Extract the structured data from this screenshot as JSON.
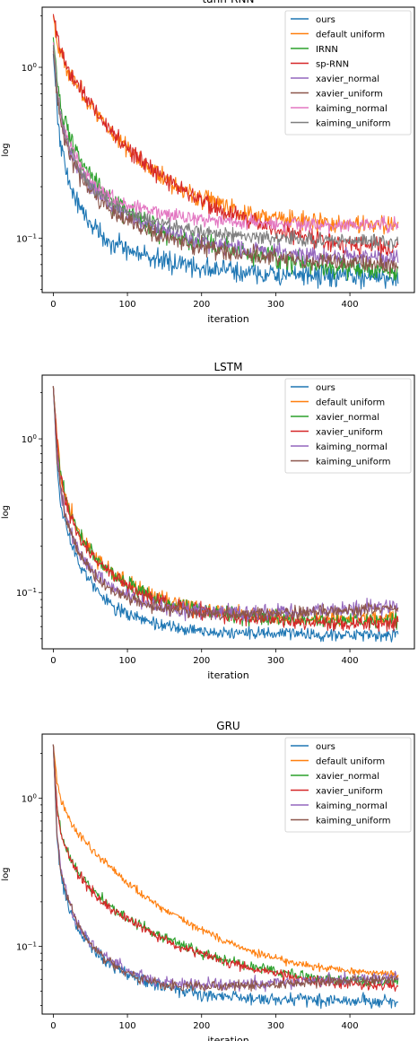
{
  "chart_data": [
    {
      "type": "line",
      "title": "tanh-RNN",
      "xlabel": "iteration",
      "ylabel": "log",
      "xlim": [
        -15,
        487
      ],
      "ylim": [
        0.048,
        2.25
      ],
      "yscale": "log",
      "xticks": [
        0,
        100,
        200,
        300,
        400
      ],
      "yticks": [
        {
          "value": 1.0,
          "label": "10^0"
        },
        {
          "value": 0.1,
          "label": "10^-1"
        }
      ],
      "grid": false,
      "legend_position": "top-right",
      "x": [
        0,
        5,
        10,
        20,
        30,
        40,
        50,
        60,
        70,
        80,
        100,
        120,
        140,
        160,
        180,
        200,
        230,
        260,
        300,
        340,
        380,
        420,
        465
      ],
      "series": [
        {
          "name": "ours",
          "color": "#1f77b4",
          "noise": 0.09,
          "values": [
            1.2,
            0.6,
            0.35,
            0.22,
            0.17,
            0.14,
            0.125,
            0.11,
            0.1,
            0.095,
            0.085,
            0.08,
            0.075,
            0.072,
            0.07,
            0.067,
            0.065,
            0.063,
            0.061,
            0.06,
            0.06,
            0.059,
            0.059
          ]
        },
        {
          "name": "default uniform",
          "color": "#ff7f0e",
          "noise": 0.08,
          "values": [
            2.0,
            1.5,
            1.2,
            0.95,
            0.8,
            0.7,
            0.6,
            0.52,
            0.46,
            0.41,
            0.34,
            0.28,
            0.24,
            0.21,
            0.19,
            0.17,
            0.155,
            0.14,
            0.13,
            0.125,
            0.122,
            0.12,
            0.118
          ]
        },
        {
          "name": "IRNN",
          "color": "#2ca02c",
          "noise": 0.09,
          "values": [
            1.5,
            0.85,
            0.6,
            0.42,
            0.33,
            0.27,
            0.23,
            0.2,
            0.18,
            0.16,
            0.14,
            0.125,
            0.115,
            0.105,
            0.098,
            0.093,
            0.087,
            0.082,
            0.077,
            0.072,
            0.068,
            0.066,
            0.064
          ]
        },
        {
          "name": "sp-RNN",
          "color": "#d62728",
          "noise": 0.08,
          "values": [
            2.05,
            1.55,
            1.25,
            0.97,
            0.82,
            0.72,
            0.62,
            0.54,
            0.47,
            0.42,
            0.34,
            0.28,
            0.24,
            0.21,
            0.185,
            0.165,
            0.145,
            0.128,
            0.112,
            0.102,
            0.095,
            0.09,
            0.086
          ]
        },
        {
          "name": "xavier_normal",
          "color": "#9467bd",
          "noise": 0.07,
          "values": [
            1.3,
            0.75,
            0.5,
            0.34,
            0.27,
            0.23,
            0.2,
            0.18,
            0.165,
            0.15,
            0.135,
            0.122,
            0.113,
            0.106,
            0.1,
            0.095,
            0.09,
            0.086,
            0.083,
            0.08,
            0.078,
            0.077,
            0.076
          ]
        },
        {
          "name": "xavier_uniform",
          "color": "#8c564b",
          "noise": 0.07,
          "values": [
            1.25,
            0.72,
            0.48,
            0.33,
            0.26,
            0.22,
            0.19,
            0.17,
            0.155,
            0.142,
            0.125,
            0.113,
            0.105,
            0.098,
            0.093,
            0.089,
            0.084,
            0.08,
            0.077,
            0.074,
            0.072,
            0.071,
            0.07
          ]
        },
        {
          "name": "kaiming_normal",
          "color": "#e377c2",
          "noise": 0.06,
          "values": [
            1.4,
            0.8,
            0.55,
            0.38,
            0.3,
            0.25,
            0.22,
            0.2,
            0.185,
            0.172,
            0.158,
            0.148,
            0.141,
            0.136,
            0.132,
            0.129,
            0.126,
            0.124,
            0.122,
            0.12,
            0.119,
            0.119,
            0.12
          ]
        },
        {
          "name": "kaiming_uniform",
          "color": "#7f7f7f",
          "noise": 0.06,
          "values": [
            1.35,
            0.78,
            0.52,
            0.36,
            0.28,
            0.235,
            0.205,
            0.185,
            0.17,
            0.158,
            0.143,
            0.132,
            0.124,
            0.118,
            0.113,
            0.109,
            0.105,
            0.102,
            0.1,
            0.098,
            0.097,
            0.096,
            0.096
          ]
        }
      ]
    },
    {
      "type": "line",
      "title": "LSTM",
      "xlabel": "iteration",
      "ylabel": "log",
      "xlim": [
        -15,
        487
      ],
      "ylim": [
        0.043,
        2.6
      ],
      "yscale": "log",
      "xticks": [
        0,
        100,
        200,
        300,
        400
      ],
      "yticks": [
        {
          "value": 1.0,
          "label": "10^0"
        },
        {
          "value": 0.1,
          "label": "10^-1"
        }
      ],
      "grid": false,
      "legend_position": "top-right",
      "x": [
        0,
        5,
        10,
        20,
        30,
        40,
        50,
        60,
        70,
        80,
        100,
        120,
        140,
        160,
        180,
        200,
        230,
        260,
        300,
        340,
        380,
        420,
        465
      ],
      "series": [
        {
          "name": "ours",
          "color": "#1f77b4",
          "noise": 0.06,
          "values": [
            2.2,
            0.7,
            0.38,
            0.24,
            0.18,
            0.14,
            0.12,
            0.1,
            0.09,
            0.082,
            0.072,
            0.066,
            0.062,
            0.059,
            0.057,
            0.056,
            0.055,
            0.054,
            0.054,
            0.053,
            0.053,
            0.053,
            0.053
          ]
        },
        {
          "name": "default uniform",
          "color": "#ff7f0e",
          "noise": 0.07,
          "values": [
            2.2,
            1.0,
            0.6,
            0.38,
            0.28,
            0.22,
            0.19,
            0.165,
            0.148,
            0.135,
            0.115,
            0.102,
            0.093,
            0.086,
            0.081,
            0.078,
            0.074,
            0.072,
            0.07,
            0.069,
            0.068,
            0.068,
            0.068
          ]
        },
        {
          "name": "xavier_normal",
          "color": "#2ca02c",
          "noise": 0.07,
          "values": [
            2.2,
            0.95,
            0.57,
            0.36,
            0.27,
            0.215,
            0.185,
            0.16,
            0.145,
            0.132,
            0.113,
            0.1,
            0.091,
            0.085,
            0.08,
            0.077,
            0.073,
            0.07,
            0.068,
            0.066,
            0.065,
            0.065,
            0.065
          ]
        },
        {
          "name": "xavier_uniform",
          "color": "#d62728",
          "noise": 0.07,
          "values": [
            2.2,
            0.93,
            0.56,
            0.35,
            0.265,
            0.21,
            0.18,
            0.158,
            0.142,
            0.13,
            0.111,
            0.098,
            0.09,
            0.084,
            0.079,
            0.075,
            0.071,
            0.068,
            0.066,
            0.064,
            0.063,
            0.063,
            0.063
          ]
        },
        {
          "name": "kaiming_normal",
          "color": "#9467bd",
          "noise": 0.07,
          "values": [
            2.2,
            0.8,
            0.45,
            0.28,
            0.21,
            0.17,
            0.145,
            0.128,
            0.117,
            0.108,
            0.095,
            0.087,
            0.082,
            0.078,
            0.076,
            0.075,
            0.074,
            0.074,
            0.075,
            0.076,
            0.078,
            0.08,
            0.082
          ]
        },
        {
          "name": "kaiming_uniform",
          "color": "#8c564b",
          "noise": 0.06,
          "values": [
            2.2,
            0.78,
            0.44,
            0.27,
            0.205,
            0.165,
            0.14,
            0.124,
            0.113,
            0.105,
            0.093,
            0.085,
            0.08,
            0.077,
            0.075,
            0.074,
            0.073,
            0.073,
            0.074,
            0.075,
            0.076,
            0.077,
            0.078
          ]
        }
      ]
    },
    {
      "type": "line",
      "title": "GRU",
      "xlabel": "iteration",
      "ylabel": "log",
      "xlim": [
        -15,
        487
      ],
      "ylim": [
        0.035,
        2.7
      ],
      "yscale": "log",
      "xticks": [
        0,
        100,
        200,
        300,
        400
      ],
      "yticks": [
        {
          "value": 1.0,
          "label": "10^0"
        },
        {
          "value": 0.1,
          "label": "10^-1"
        }
      ],
      "grid": false,
      "legend_position": "top-right",
      "x": [
        0,
        5,
        10,
        20,
        30,
        40,
        50,
        60,
        70,
        80,
        100,
        120,
        140,
        160,
        180,
        200,
        230,
        260,
        300,
        340,
        380,
        420,
        465
      ],
      "series": [
        {
          "name": "ours",
          "color": "#1f77b4",
          "noise": 0.06,
          "values": [
            2.3,
            0.55,
            0.3,
            0.19,
            0.14,
            0.115,
            0.1,
            0.09,
            0.082,
            0.075,
            0.066,
            0.06,
            0.055,
            0.052,
            0.05,
            0.048,
            0.046,
            0.045,
            0.044,
            0.044,
            0.043,
            0.043,
            0.043
          ]
        },
        {
          "name": "default uniform",
          "color": "#ff7f0e",
          "noise": 0.04,
          "values": [
            2.3,
            1.3,
            0.95,
            0.75,
            0.62,
            0.53,
            0.46,
            0.41,
            0.37,
            0.33,
            0.27,
            0.225,
            0.19,
            0.165,
            0.145,
            0.13,
            0.11,
            0.095,
            0.083,
            0.075,
            0.07,
            0.067,
            0.065
          ]
        },
        {
          "name": "xavier_normal",
          "color": "#2ca02c",
          "noise": 0.05,
          "values": [
            2.3,
            0.9,
            0.6,
            0.42,
            0.34,
            0.29,
            0.25,
            0.22,
            0.2,
            0.18,
            0.155,
            0.137,
            0.122,
            0.11,
            0.1,
            0.091,
            0.082,
            0.075,
            0.068,
            0.063,
            0.06,
            0.058,
            0.057
          ]
        },
        {
          "name": "xavier_uniform",
          "color": "#d62728",
          "noise": 0.05,
          "values": [
            2.3,
            0.88,
            0.58,
            0.41,
            0.33,
            0.28,
            0.245,
            0.215,
            0.195,
            0.177,
            0.152,
            0.133,
            0.118,
            0.106,
            0.096,
            0.088,
            0.079,
            0.072,
            0.065,
            0.06,
            0.057,
            0.055,
            0.054
          ]
        },
        {
          "name": "kaiming_normal",
          "color": "#9467bd",
          "noise": 0.06,
          "values": [
            2.3,
            0.6,
            0.33,
            0.21,
            0.155,
            0.125,
            0.105,
            0.093,
            0.085,
            0.078,
            0.068,
            0.062,
            0.058,
            0.056,
            0.055,
            0.055,
            0.055,
            0.056,
            0.057,
            0.058,
            0.06,
            0.061,
            0.062
          ]
        },
        {
          "name": "kaiming_uniform",
          "color": "#8c564b",
          "noise": 0.05,
          "values": [
            2.3,
            0.58,
            0.32,
            0.205,
            0.152,
            0.122,
            0.103,
            0.091,
            0.083,
            0.076,
            0.067,
            0.061,
            0.057,
            0.055,
            0.054,
            0.054,
            0.054,
            0.055,
            0.056,
            0.057,
            0.058,
            0.059,
            0.06
          ]
        }
      ]
    }
  ]
}
